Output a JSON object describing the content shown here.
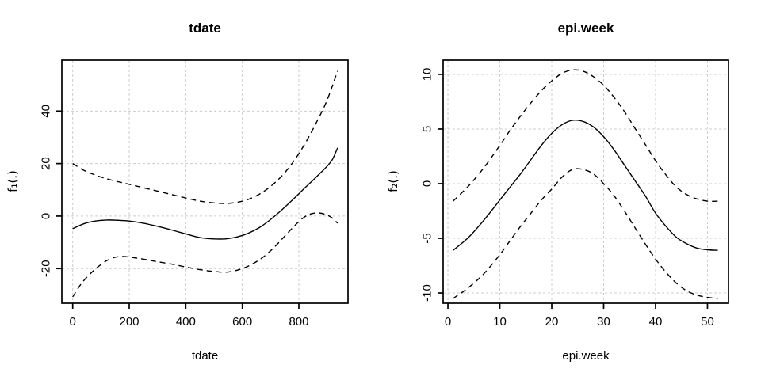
{
  "page": {
    "background": "#ffffff",
    "axis_color": "#000000",
    "grid_color": "#cccccc"
  },
  "chart_data": [
    {
      "type": "line",
      "title": "tdate",
      "xlabel": "tdate",
      "ylabel": "f₁(.)",
      "xlim": [
        -38.4,
        973.9
      ],
      "ylim": [
        -33.2,
        59.4
      ],
      "xticks": [
        0,
        200,
        400,
        600,
        800
      ],
      "yticks": [
        -20,
        0,
        20,
        40
      ],
      "grid": {
        "show": true,
        "color": "#cccccc",
        "dash": "3,3"
      },
      "legend": "none",
      "series": [
        {
          "name": "fit",
          "style": "solid",
          "color": "#000000",
          "points": [
            [
              0,
              -4.8
            ],
            [
              40,
              -2.9
            ],
            [
              80,
              -1.9
            ],
            [
              120,
              -1.5
            ],
            [
              160,
              -1.6
            ],
            [
              200,
              -1.9
            ],
            [
              250,
              -2.7
            ],
            [
              300,
              -3.9
            ],
            [
              350,
              -5.3
            ],
            [
              400,
              -6.8
            ],
            [
              450,
              -8.2
            ],
            [
              500,
              -8.7
            ],
            [
              540,
              -8.7
            ],
            [
              580,
              -8.0
            ],
            [
              620,
              -6.6
            ],
            [
              660,
              -4.4
            ],
            [
              700,
              -1.3
            ],
            [
              740,
              2.4
            ],
            [
              780,
              6.4
            ],
            [
              820,
              10.6
            ],
            [
              860,
              14.7
            ],
            [
              900,
              19.0
            ],
            [
              920,
              21.8
            ],
            [
              937,
              26.0
            ]
          ]
        },
        {
          "name": "upper-ci",
          "style": "dashed",
          "color": "#000000",
          "points": [
            [
              0,
              20.0
            ],
            [
              40,
              17.4
            ],
            [
              80,
              15.6
            ],
            [
              120,
              14.2
            ],
            [
              160,
              13.1
            ],
            [
              200,
              12.1
            ],
            [
              250,
              10.8
            ],
            [
              300,
              9.5
            ],
            [
              350,
              8.2
            ],
            [
              400,
              6.9
            ],
            [
              450,
              5.7
            ],
            [
              500,
              5.0
            ],
            [
              540,
              4.8
            ],
            [
              580,
              5.2
            ],
            [
              620,
              6.3
            ],
            [
              660,
              8.3
            ],
            [
              700,
              11.3
            ],
            [
              740,
              15.3
            ],
            [
              780,
              20.6
            ],
            [
              820,
              27.3
            ],
            [
              860,
              35.2
            ],
            [
              900,
              44.2
            ],
            [
              937,
              55.3
            ]
          ]
        },
        {
          "name": "lower-ci",
          "style": "dashed",
          "color": "#000000",
          "points": [
            [
              0,
              -30.8
            ],
            [
              30,
              -25.8
            ],
            [
              60,
              -22.2
            ],
            [
              90,
              -19.3
            ],
            [
              120,
              -17.0
            ],
            [
              150,
              -15.7
            ],
            [
              180,
              -15.4
            ],
            [
              220,
              -15.9
            ],
            [
              260,
              -16.6
            ],
            [
              300,
              -17.4
            ],
            [
              350,
              -18.3
            ],
            [
              400,
              -19.4
            ],
            [
              450,
              -20.4
            ],
            [
              500,
              -21.1
            ],
            [
              550,
              -21.3
            ],
            [
              600,
              -20.0
            ],
            [
              640,
              -18.0
            ],
            [
              680,
              -15.1
            ],
            [
              720,
              -11.1
            ],
            [
              760,
              -6.5
            ],
            [
              800,
              -2.1
            ],
            [
              830,
              0.3
            ],
            [
              860,
              1.2
            ],
            [
              890,
              0.8
            ],
            [
              915,
              -0.5
            ],
            [
              937,
              -2.7
            ]
          ]
        }
      ]
    },
    {
      "type": "line",
      "title": "epi.week",
      "xlabel": "epi.week",
      "ylabel": "f₂(.)",
      "xlim": [
        -0.92,
        54.05
      ],
      "ylim": [
        -10.94,
        11.3
      ],
      "xticks": [
        0,
        10,
        20,
        30,
        40,
        50
      ],
      "yticks": [
        -10,
        -5,
        0,
        5,
        10
      ],
      "grid": {
        "show": true,
        "color": "#cccccc",
        "dash": "3,3"
      },
      "legend": "none",
      "series": [
        {
          "name": "fit",
          "style": "solid",
          "color": "#000000",
          "points": [
            [
              1,
              -6.1
            ],
            [
              4,
              -4.9
            ],
            [
              7,
              -3.3
            ],
            [
              10,
              -1.5
            ],
            [
              12,
              -0.3
            ],
            [
              14,
              0.9
            ],
            [
              16,
              2.2
            ],
            [
              18,
              3.5
            ],
            [
              20,
              4.6
            ],
            [
              22,
              5.4
            ],
            [
              24,
              5.8
            ],
            [
              26,
              5.7
            ],
            [
              28,
              5.2
            ],
            [
              30,
              4.3
            ],
            [
              32,
              3.1
            ],
            [
              34,
              1.7
            ],
            [
              36,
              0.3
            ],
            [
              38,
              -1.1
            ],
            [
              40,
              -2.7
            ],
            [
              42,
              -3.9
            ],
            [
              44,
              -4.9
            ],
            [
              46,
              -5.5
            ],
            [
              48,
              -5.9
            ],
            [
              50,
              -6.05
            ],
            [
              52,
              -6.1
            ]
          ]
        },
        {
          "name": "upper-ci",
          "style": "dashed",
          "color": "#000000",
          "points": [
            [
              1,
              -1.6
            ],
            [
              4,
              -0.2
            ],
            [
              7,
              1.5
            ],
            [
              10,
              3.5
            ],
            [
              12,
              4.9
            ],
            [
              14,
              6.2
            ],
            [
              16,
              7.4
            ],
            [
              18,
              8.5
            ],
            [
              20,
              9.4
            ],
            [
              22,
              10.1
            ],
            [
              24,
              10.4
            ],
            [
              26,
              10.3
            ],
            [
              28,
              9.8
            ],
            [
              30,
              9.0
            ],
            [
              32,
              7.9
            ],
            [
              34,
              6.6
            ],
            [
              36,
              5.1
            ],
            [
              38,
              3.6
            ],
            [
              40,
              2.1
            ],
            [
              42,
              0.8
            ],
            [
              44,
              -0.3
            ],
            [
              46,
              -1.0
            ],
            [
              48,
              -1.4
            ],
            [
              50,
              -1.6
            ],
            [
              52,
              -1.6
            ]
          ]
        },
        {
          "name": "lower-ci",
          "style": "dashed",
          "color": "#000000",
          "points": [
            [
              1,
              -10.5
            ],
            [
              4,
              -9.5
            ],
            [
              7,
              -8.2
            ],
            [
              10,
              -6.5
            ],
            [
              12,
              -5.2
            ],
            [
              14,
              -3.9
            ],
            [
              16,
              -2.7
            ],
            [
              18,
              -1.5
            ],
            [
              20,
              -0.5
            ],
            [
              22,
              0.6
            ],
            [
              24,
              1.3
            ],
            [
              26,
              1.3
            ],
            [
              28,
              0.9
            ],
            [
              30,
              0.0
            ],
            [
              32,
              -1.1
            ],
            [
              34,
              -2.5
            ],
            [
              36,
              -4.0
            ],
            [
              38,
              -5.5
            ],
            [
              40,
              -6.9
            ],
            [
              42,
              -8.1
            ],
            [
              44,
              -9.1
            ],
            [
              46,
              -9.8
            ],
            [
              48,
              -10.2
            ],
            [
              50,
              -10.4
            ],
            [
              52,
              -10.5
            ]
          ]
        }
      ]
    }
  ]
}
